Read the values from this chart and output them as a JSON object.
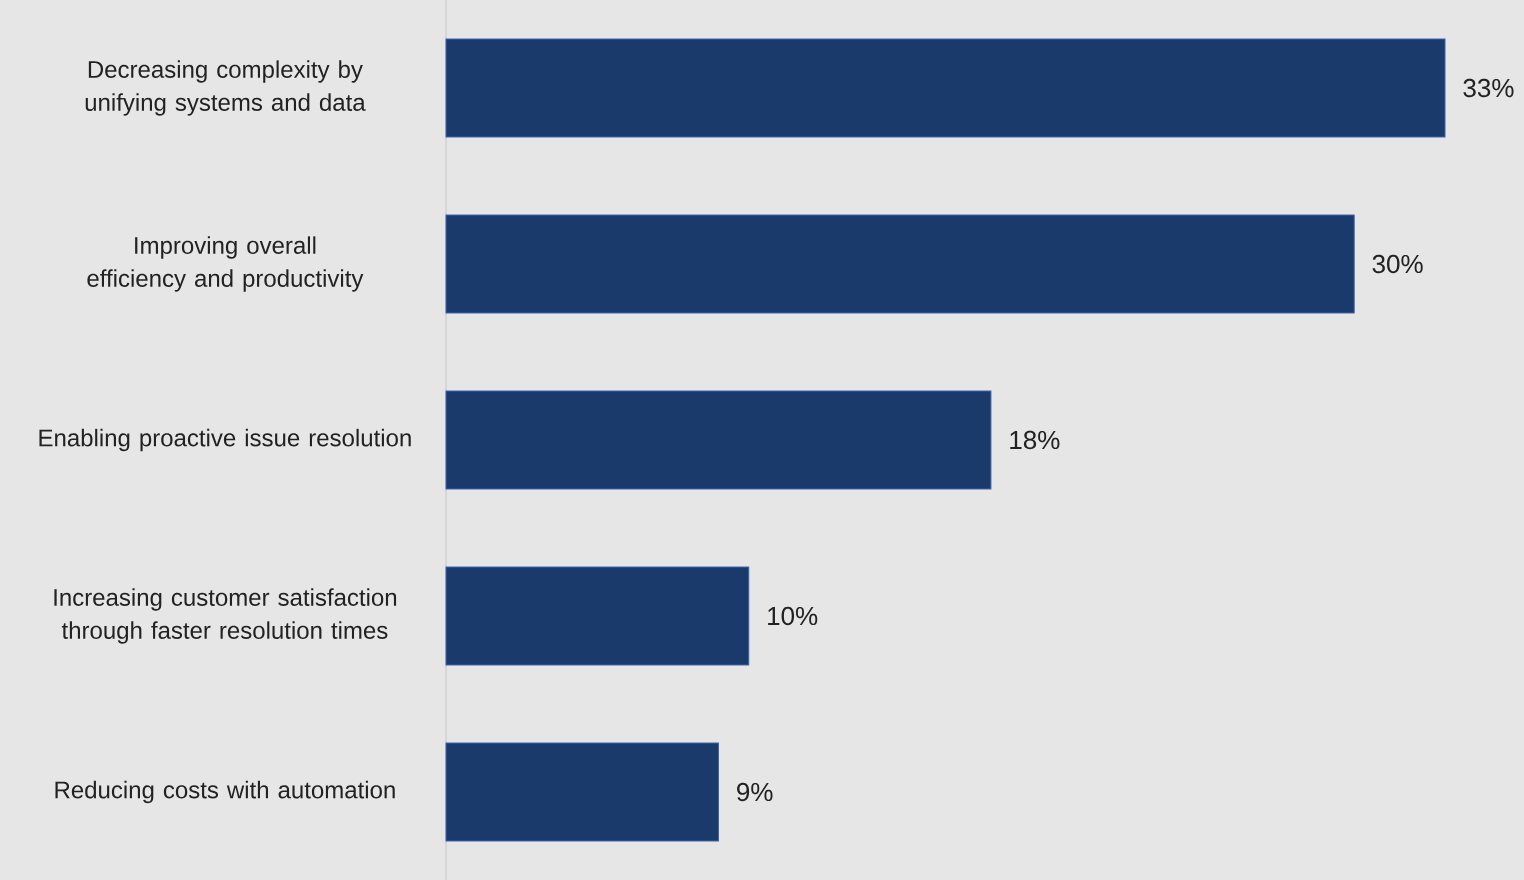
{
  "chart_data": {
    "type": "bar",
    "orientation": "horizontal",
    "categories": [
      "Decreasing complexity by unifying systems and data",
      "Improving overall efficiency and productivity",
      "Enabling proactive issue resolution",
      "Increasing customer satisfaction through faster resolution times",
      "Reducing costs with automation"
    ],
    "values": [
      33,
      30,
      18,
      10,
      9
    ],
    "value_labels": [
      "33%",
      "30%",
      "18%",
      "10%",
      "9%"
    ],
    "color": "#1a3a6b",
    "grid": false,
    "tick_labels": "y"
  }
}
